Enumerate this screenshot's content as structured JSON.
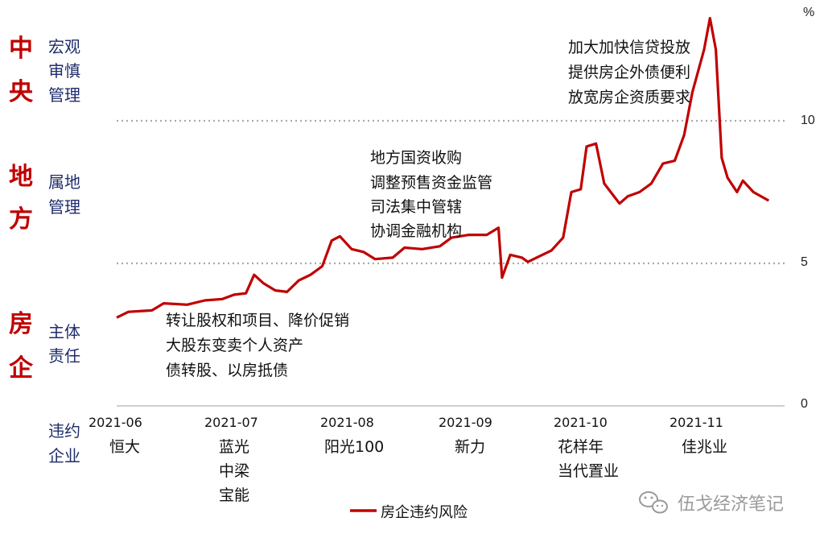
{
  "side_panel": [
    {
      "big": [
        "中",
        "央"
      ],
      "small": [
        "宏观",
        "审慎",
        "管理"
      ]
    },
    {
      "big": [
        "地",
        "方"
      ],
      "small": [
        "属地",
        "管理"
      ]
    },
    {
      "big": [
        "房",
        "企"
      ],
      "small": [
        "主体",
        "责任"
      ]
    }
  ],
  "bottom_left_label": [
    "违约",
    "企业"
  ],
  "annotations": [
    [
      "加大加快信贷投放",
      "提供房企外债便利",
      "放宽房企资质要求"
    ],
    [
      "地方国资收购",
      "调整预售资金监管",
      "司法集中管辖",
      "协调金融机构"
    ],
    [
      "转让股权和项目、降价促销",
      "大股东变卖个人资产",
      "债转股、以房抵债"
    ]
  ],
  "x_ticks": [
    "2021-06",
    "2021-07",
    "2021-08",
    "2021-09",
    "2021-10",
    "2021-11"
  ],
  "companies": [
    [
      "恒大"
    ],
    [
      "蓝光",
      "中梁",
      "宝能"
    ],
    [
      "阳光100"
    ],
    [
      "新力"
    ],
    [
      "花样年",
      "当代置业"
    ],
    [
      "佳兆业"
    ]
  ],
  "y_unit": "%",
  "y_ticks": [
    "0",
    "5",
    "10"
  ],
  "legend": "房企违约风险",
  "watermark": "伍戈经济笔记",
  "colors": {
    "line": "#c00000",
    "side_big": "#c00000",
    "side_small": "#1f2d6b",
    "grid": "#aaaaaa"
  },
  "chart_data": {
    "type": "line",
    "title": "",
    "xlabel": "",
    "ylabel": "%",
    "ylim": [
      0,
      14
    ],
    "grid": "dotted horizontal at 5 and 10",
    "legend_position": "bottom",
    "x_ticks": [
      "2021-06",
      "2021-07",
      "2021-08",
      "2021-09",
      "2021-10",
      "2021-11"
    ],
    "series": [
      {
        "name": "房企违约风险",
        "points": [
          [
            0.0,
            3.1
          ],
          [
            0.1,
            3.3
          ],
          [
            0.3,
            3.35
          ],
          [
            0.4,
            3.6
          ],
          [
            0.6,
            3.55
          ],
          [
            0.75,
            3.7
          ],
          [
            0.9,
            3.75
          ],
          [
            1.0,
            3.9
          ],
          [
            1.1,
            3.95
          ],
          [
            1.17,
            4.6
          ],
          [
            1.25,
            4.3
          ],
          [
            1.35,
            4.05
          ],
          [
            1.45,
            4.0
          ],
          [
            1.55,
            4.4
          ],
          [
            1.65,
            4.6
          ],
          [
            1.75,
            4.9
          ],
          [
            1.83,
            5.8
          ],
          [
            1.9,
            5.95
          ],
          [
            2.0,
            5.5
          ],
          [
            2.1,
            5.4
          ],
          [
            2.2,
            5.15
          ],
          [
            2.35,
            5.2
          ],
          [
            2.45,
            5.55
          ],
          [
            2.6,
            5.5
          ],
          [
            2.75,
            5.6
          ],
          [
            2.85,
            5.9
          ],
          [
            3.0,
            6.0
          ],
          [
            3.15,
            6.0
          ],
          [
            3.25,
            6.25
          ],
          [
            3.28,
            4.5
          ],
          [
            3.35,
            5.3
          ],
          [
            3.45,
            5.2
          ],
          [
            3.5,
            5.05
          ],
          [
            3.6,
            5.25
          ],
          [
            3.7,
            5.45
          ],
          [
            3.8,
            5.9
          ],
          [
            3.87,
            7.5
          ],
          [
            3.95,
            7.6
          ],
          [
            4.0,
            9.1
          ],
          [
            4.08,
            9.2
          ],
          [
            4.15,
            7.8
          ],
          [
            4.28,
            7.1
          ],
          [
            4.35,
            7.35
          ],
          [
            4.45,
            7.5
          ],
          [
            4.55,
            7.8
          ],
          [
            4.65,
            8.5
          ],
          [
            4.75,
            8.6
          ],
          [
            4.83,
            9.5
          ],
          [
            4.9,
            11.0
          ],
          [
            5.0,
            12.5
          ],
          [
            5.05,
            13.6
          ],
          [
            5.1,
            12.5
          ],
          [
            5.15,
            8.7
          ],
          [
            5.2,
            8.0
          ],
          [
            5.28,
            7.5
          ],
          [
            5.33,
            7.9
          ],
          [
            5.42,
            7.5
          ],
          [
            5.55,
            7.2
          ]
        ]
      }
    ]
  }
}
